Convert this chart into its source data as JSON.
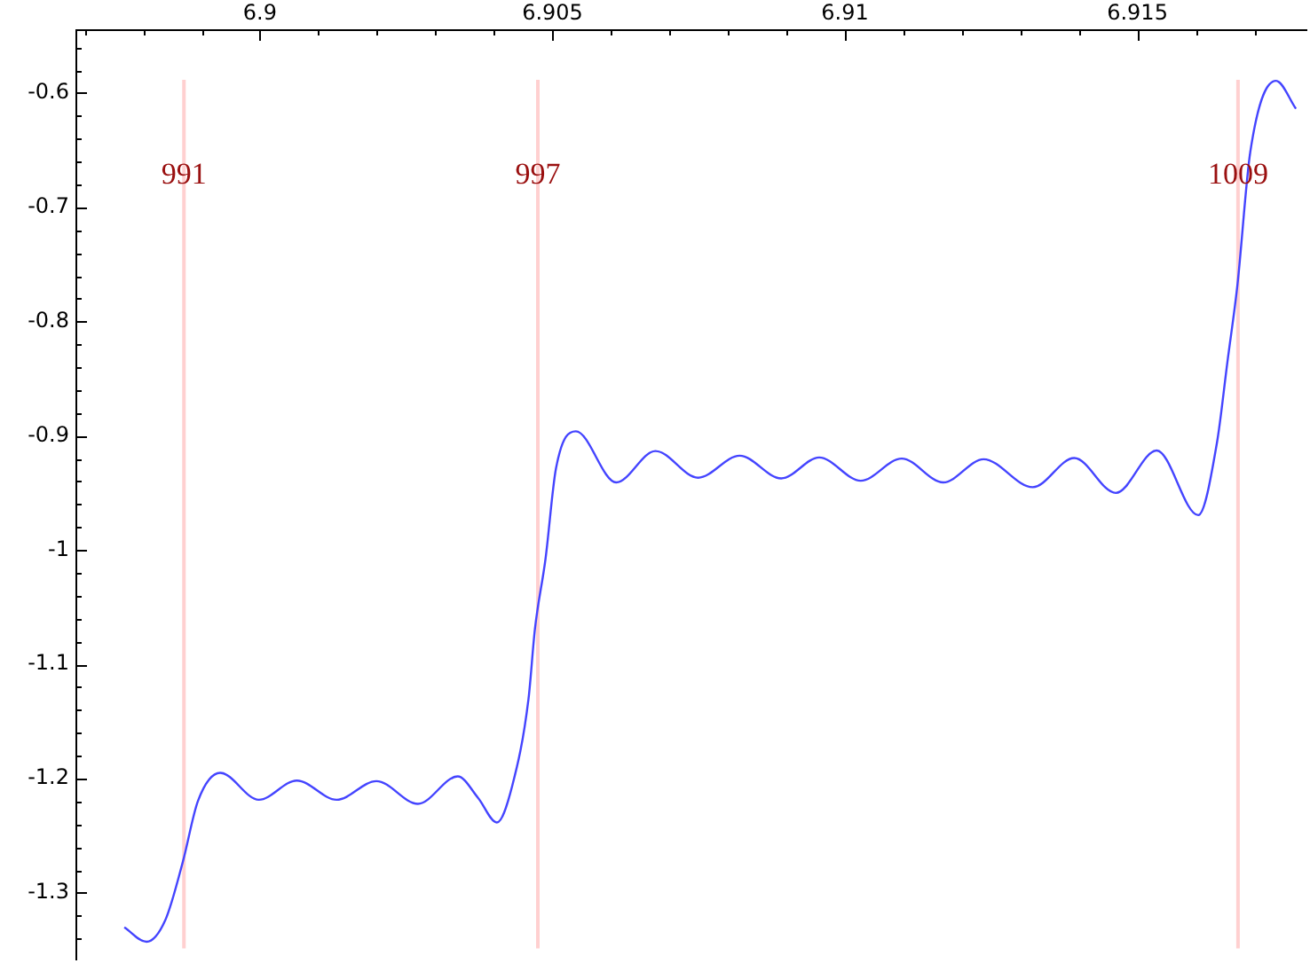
{
  "chart_data": {
    "type": "line",
    "x": [
      6.89768,
      6.89806,
      6.89838,
      6.89868,
      6.89894,
      6.89932,
      6.89998,
      6.90063,
      6.90131,
      6.90199,
      6.9027,
      6.90338,
      6.90373,
      6.90405,
      6.90431,
      6.90459,
      6.9047,
      6.90488,
      6.90506,
      6.9054,
      6.90609,
      6.90676,
      6.90749,
      6.9082,
      6.90891,
      6.90956,
      6.91027,
      6.91097,
      6.91168,
      6.91237,
      6.91321,
      6.91392,
      6.91463,
      6.91533,
      6.91604,
      6.91636,
      6.91654,
      6.91671,
      6.91693,
      6.91737,
      6.91771
    ],
    "series": [
      {
        "color": "#4444ff",
        "values": [
          -1.3301,
          -1.3428,
          -1.324,
          -1.273,
          -1.2195,
          -1.195,
          -1.2185,
          -1.2017,
          -1.2185,
          -1.2022,
          -1.2221,
          -1.1981,
          -1.217,
          -1.2384,
          -1.2068,
          -1.1304,
          -1.0692,
          -1.0081,
          -0.9286,
          -0.8961,
          -0.9408,
          -0.9133,
          -0.9367,
          -0.9174,
          -0.9373,
          -0.919,
          -0.9393,
          -0.9199,
          -0.9408,
          -0.9205,
          -0.945,
          -0.9194,
          -0.95,
          -0.9129,
          -0.9694,
          -0.9061,
          -0.8349,
          -0.7681,
          -0.6515,
          -0.5893,
          -0.6138
        ]
      }
    ],
    "xlim": [
      6.89686,
      6.91789
    ],
    "ylim": [
      -1.358,
      -0.545
    ],
    "xticks": [
      {
        "value": 6.897,
        "label": null
      },
      {
        "value": 6.898,
        "label": null
      },
      {
        "value": 6.899,
        "label": null
      },
      6.9,
      {
        "value": 6.901,
        "label": null
      },
      {
        "value": 6.902,
        "label": null
      },
      {
        "value": 6.903,
        "label": null
      },
      {
        "value": 6.904,
        "label": null
      },
      6.905,
      {
        "value": 6.906,
        "label": null
      },
      {
        "value": 6.907,
        "label": null
      },
      {
        "value": 6.908,
        "label": null
      },
      {
        "value": 6.909,
        "label": null
      },
      6.91,
      {
        "value": 6.911,
        "label": null
      },
      {
        "value": 6.912,
        "label": null
      },
      {
        "value": 6.913,
        "label": null
      },
      {
        "value": 6.914,
        "label": null
      },
      6.915,
      {
        "value": 6.916,
        "label": null
      },
      {
        "value": 6.917,
        "label": null
      }
    ],
    "yticks": [
      {
        "value": -0.56,
        "label": null
      },
      {
        "value": -0.58,
        "label": null
      },
      -0.6,
      {
        "value": -0.62,
        "label": null
      },
      {
        "value": -0.64,
        "label": null
      },
      {
        "value": -0.66,
        "label": null
      },
      {
        "value": -0.68,
        "label": null
      },
      -0.7,
      {
        "value": -0.72,
        "label": null
      },
      {
        "value": -0.74,
        "label": null
      },
      {
        "value": -0.76,
        "label": null
      },
      {
        "value": -0.78,
        "label": null
      },
      -0.8,
      {
        "value": -0.82,
        "label": null
      },
      {
        "value": -0.84,
        "label": null
      },
      {
        "value": -0.86,
        "label": null
      },
      {
        "value": -0.88,
        "label": null
      },
      -0.9,
      {
        "value": -0.92,
        "label": null
      },
      {
        "value": -0.94,
        "label": null
      },
      {
        "value": -0.96,
        "label": null
      },
      {
        "value": -0.98,
        "label": null
      },
      -1,
      {
        "value": -1.02,
        "label": null
      },
      {
        "value": -1.04,
        "label": null
      },
      {
        "value": -1.06,
        "label": null
      },
      {
        "value": -1.08,
        "label": null
      },
      -1.1,
      {
        "value": -1.12,
        "label": null
      },
      {
        "value": -1.14,
        "label": null
      },
      {
        "value": -1.16,
        "label": null
      },
      {
        "value": -1.18,
        "label": null
      },
      -1.2,
      {
        "value": -1.22,
        "label": null
      },
      {
        "value": -1.24,
        "label": null
      },
      {
        "value": -1.26,
        "label": null
      },
      {
        "value": -1.28,
        "label": null
      },
      -1.3,
      {
        "value": -1.32,
        "label": null
      },
      {
        "value": -1.34,
        "label": null
      }
    ],
    "ref_lines": [
      {
        "axis": "x",
        "value": 6.8987,
        "color": "#ffd0d0"
      },
      {
        "axis": "x",
        "value": 6.90475,
        "color": "#ffd0d0"
      },
      {
        "axis": "x",
        "value": 6.91672,
        "color": "#ffd0d0"
      }
    ],
    "annotations": [
      {
        "text": "991",
        "x": 6.8987,
        "y": -0.672
      },
      {
        "text": "997",
        "x": 6.90475,
        "y": -0.672
      },
      {
        "text": "1009",
        "x": 6.91672,
        "y": -0.672
      }
    ]
  }
}
